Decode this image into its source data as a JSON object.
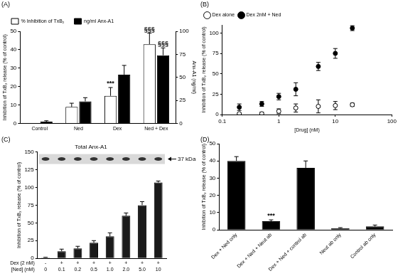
{
  "chart_data": [
    {
      "panel": "(A)",
      "type": "bar",
      "categories": [
        "Control",
        "Ned",
        "Dex",
        "Ned + Dex"
      ],
      "series": [
        {
          "name": "% Inhibition of TxB₂",
          "color": "#ffffff",
          "values": [
            0,
            9,
            15,
            43
          ],
          "errors": [
            0,
            2,
            4.5,
            6
          ]
        },
        {
          "name": "ng/ml Anx-A1",
          "color": "#000000",
          "axis": "y2",
          "values": [
            2,
            24,
            53,
            74
          ],
          "errors": [
            1,
            4,
            10,
            8
          ]
        }
      ],
      "y_label": "Inhibition of TxB₂ release (% of control)",
      "y2_label": "Anx-A1 (ng/ml)",
      "ylim": [
        0,
        50
      ],
      "yticks": [
        0,
        10,
        20,
        30,
        40,
        50
      ],
      "y2lim": [
        0,
        100
      ],
      "y2ticks": [
        0,
        25,
        50,
        75,
        100
      ],
      "annotations": [
        {
          "text": "***",
          "series": 0,
          "index": 2
        },
        {
          "text": "§§§",
          "series": 0,
          "index": 3
        },
        {
          "text": "§§§",
          "series": 1,
          "index": 3
        }
      ],
      "legend": "top-left",
      "grid": false
    },
    {
      "panel": "(B)",
      "type": "scatter",
      "x": [
        0.2,
        0.5,
        1,
        2,
        5,
        10,
        20
      ],
      "series": [
        {
          "name": "Dex alone",
          "color": "#000000",
          "marker": "open_circle",
          "values": [
            1,
            1,
            4,
            8,
            10,
            11,
            12
          ],
          "errors": [
            1,
            2,
            3,
            5,
            8,
            5,
            2
          ]
        },
        {
          "name": "Dex 2nM + Ned",
          "color": "#000000",
          "marker": "filled_circle",
          "values": [
            9,
            13,
            22,
            31,
            59,
            75,
            106
          ],
          "errors": [
            4,
            3,
            4,
            8,
            5,
            6,
            3
          ]
        }
      ],
      "x_label": "[Drug] (nM)",
      "y_label": "Inhibition of TxB₂ release (% of control)",
      "log": "x",
      "xlim": [
        0.1,
        100
      ],
      "xticks": [
        0.1,
        1,
        10,
        100
      ],
      "ylim": [
        0,
        110
      ],
      "yticks": [
        0,
        25,
        50,
        75,
        100
      ],
      "legend": "top-left",
      "grid": false
    },
    {
      "panel": "(C)",
      "type": "bar",
      "title": "Total Anx-A1",
      "categories": [
        [
          "-",
          "0"
        ],
        [
          "+",
          "0.1"
        ],
        [
          "+",
          "0.2"
        ],
        [
          "+",
          "0.5"
        ],
        [
          "+",
          "1.0"
        ],
        [
          "+",
          "2.0"
        ],
        [
          "+",
          "5.0"
        ],
        [
          "+",
          "10"
        ]
      ],
      "row_labels": [
        "Dex (2 nM)",
        "[Ned] (nM)"
      ],
      "values": [
        1,
        10,
        14,
        22,
        31,
        60,
        75,
        107
      ],
      "errors": [
        0.5,
        3,
        3,
        3,
        5,
        4,
        5,
        2
      ],
      "color": "#1a1a1a",
      "y_label": "Inhibition of TxB₂ release (% of control)",
      "ylim": [
        0,
        150
      ],
      "yticks": [
        0,
        25,
        50,
        75,
        100,
        125,
        150
      ],
      "blot_label": "37 kDa",
      "grid": false
    },
    {
      "panel": "(D)",
      "type": "bar",
      "categories": [
        "Dex + Ned only",
        "Dex + Ned + Neut ab",
        "Dex + Ned + control ab",
        "Neut ab only",
        "Control ab only"
      ],
      "values": [
        40,
        5,
        36,
        1,
        2
      ],
      "errors": [
        2.5,
        0.8,
        4,
        0.3,
        0.8
      ],
      "color": "#000000",
      "y_label": "Inhibition of TxB₂ release (% of control)",
      "ylim": [
        0,
        50
      ],
      "yticks": [
        0,
        10,
        20,
        30,
        40,
        50
      ],
      "annotations": [
        {
          "text": "***",
          "index": 1
        }
      ],
      "grid": false
    }
  ]
}
